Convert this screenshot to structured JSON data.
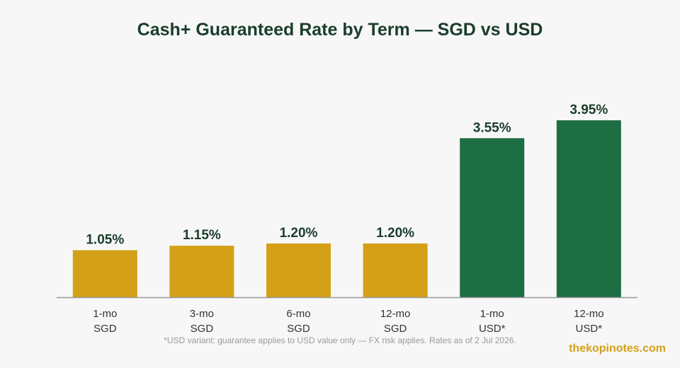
{
  "chart_data": {
    "type": "bar",
    "title": "Cash+ Guaranteed Rate by Term — SGD vs USD",
    "xlabel": "",
    "ylabel": "",
    "categories": [
      [
        "1-mo",
        "SGD"
      ],
      [
        "3-mo",
        "SGD"
      ],
      [
        "6-mo",
        "SGD"
      ],
      [
        "12-mo",
        "SGD"
      ],
      [
        "1-mo",
        "USD*"
      ],
      [
        "12-mo",
        "USD*"
      ]
    ],
    "values": [
      1.05,
      1.15,
      1.2,
      1.2,
      3.55,
      3.95
    ],
    "value_labels": [
      "1.05%",
      "1.15%",
      "1.20%",
      "1.20%",
      "3.55%",
      "3.95%"
    ],
    "bar_colors": [
      "#d4a017",
      "#d4a017",
      "#d4a017",
      "#d4a017",
      "#1e6e43",
      "#1e6e43"
    ],
    "ylim": [
      0,
      4.0
    ],
    "grid": false,
    "legend": "none"
  },
  "footnote": "*USD variant: guarantee applies to USD value only — FX risk applies. Rates as of 2 Jul 2026.",
  "brand": "thekopinotes.com",
  "colors": {
    "sgd": "#d4a017",
    "usd": "#1e6e43",
    "title": "#1a3d2b",
    "axis": "#999999"
  }
}
